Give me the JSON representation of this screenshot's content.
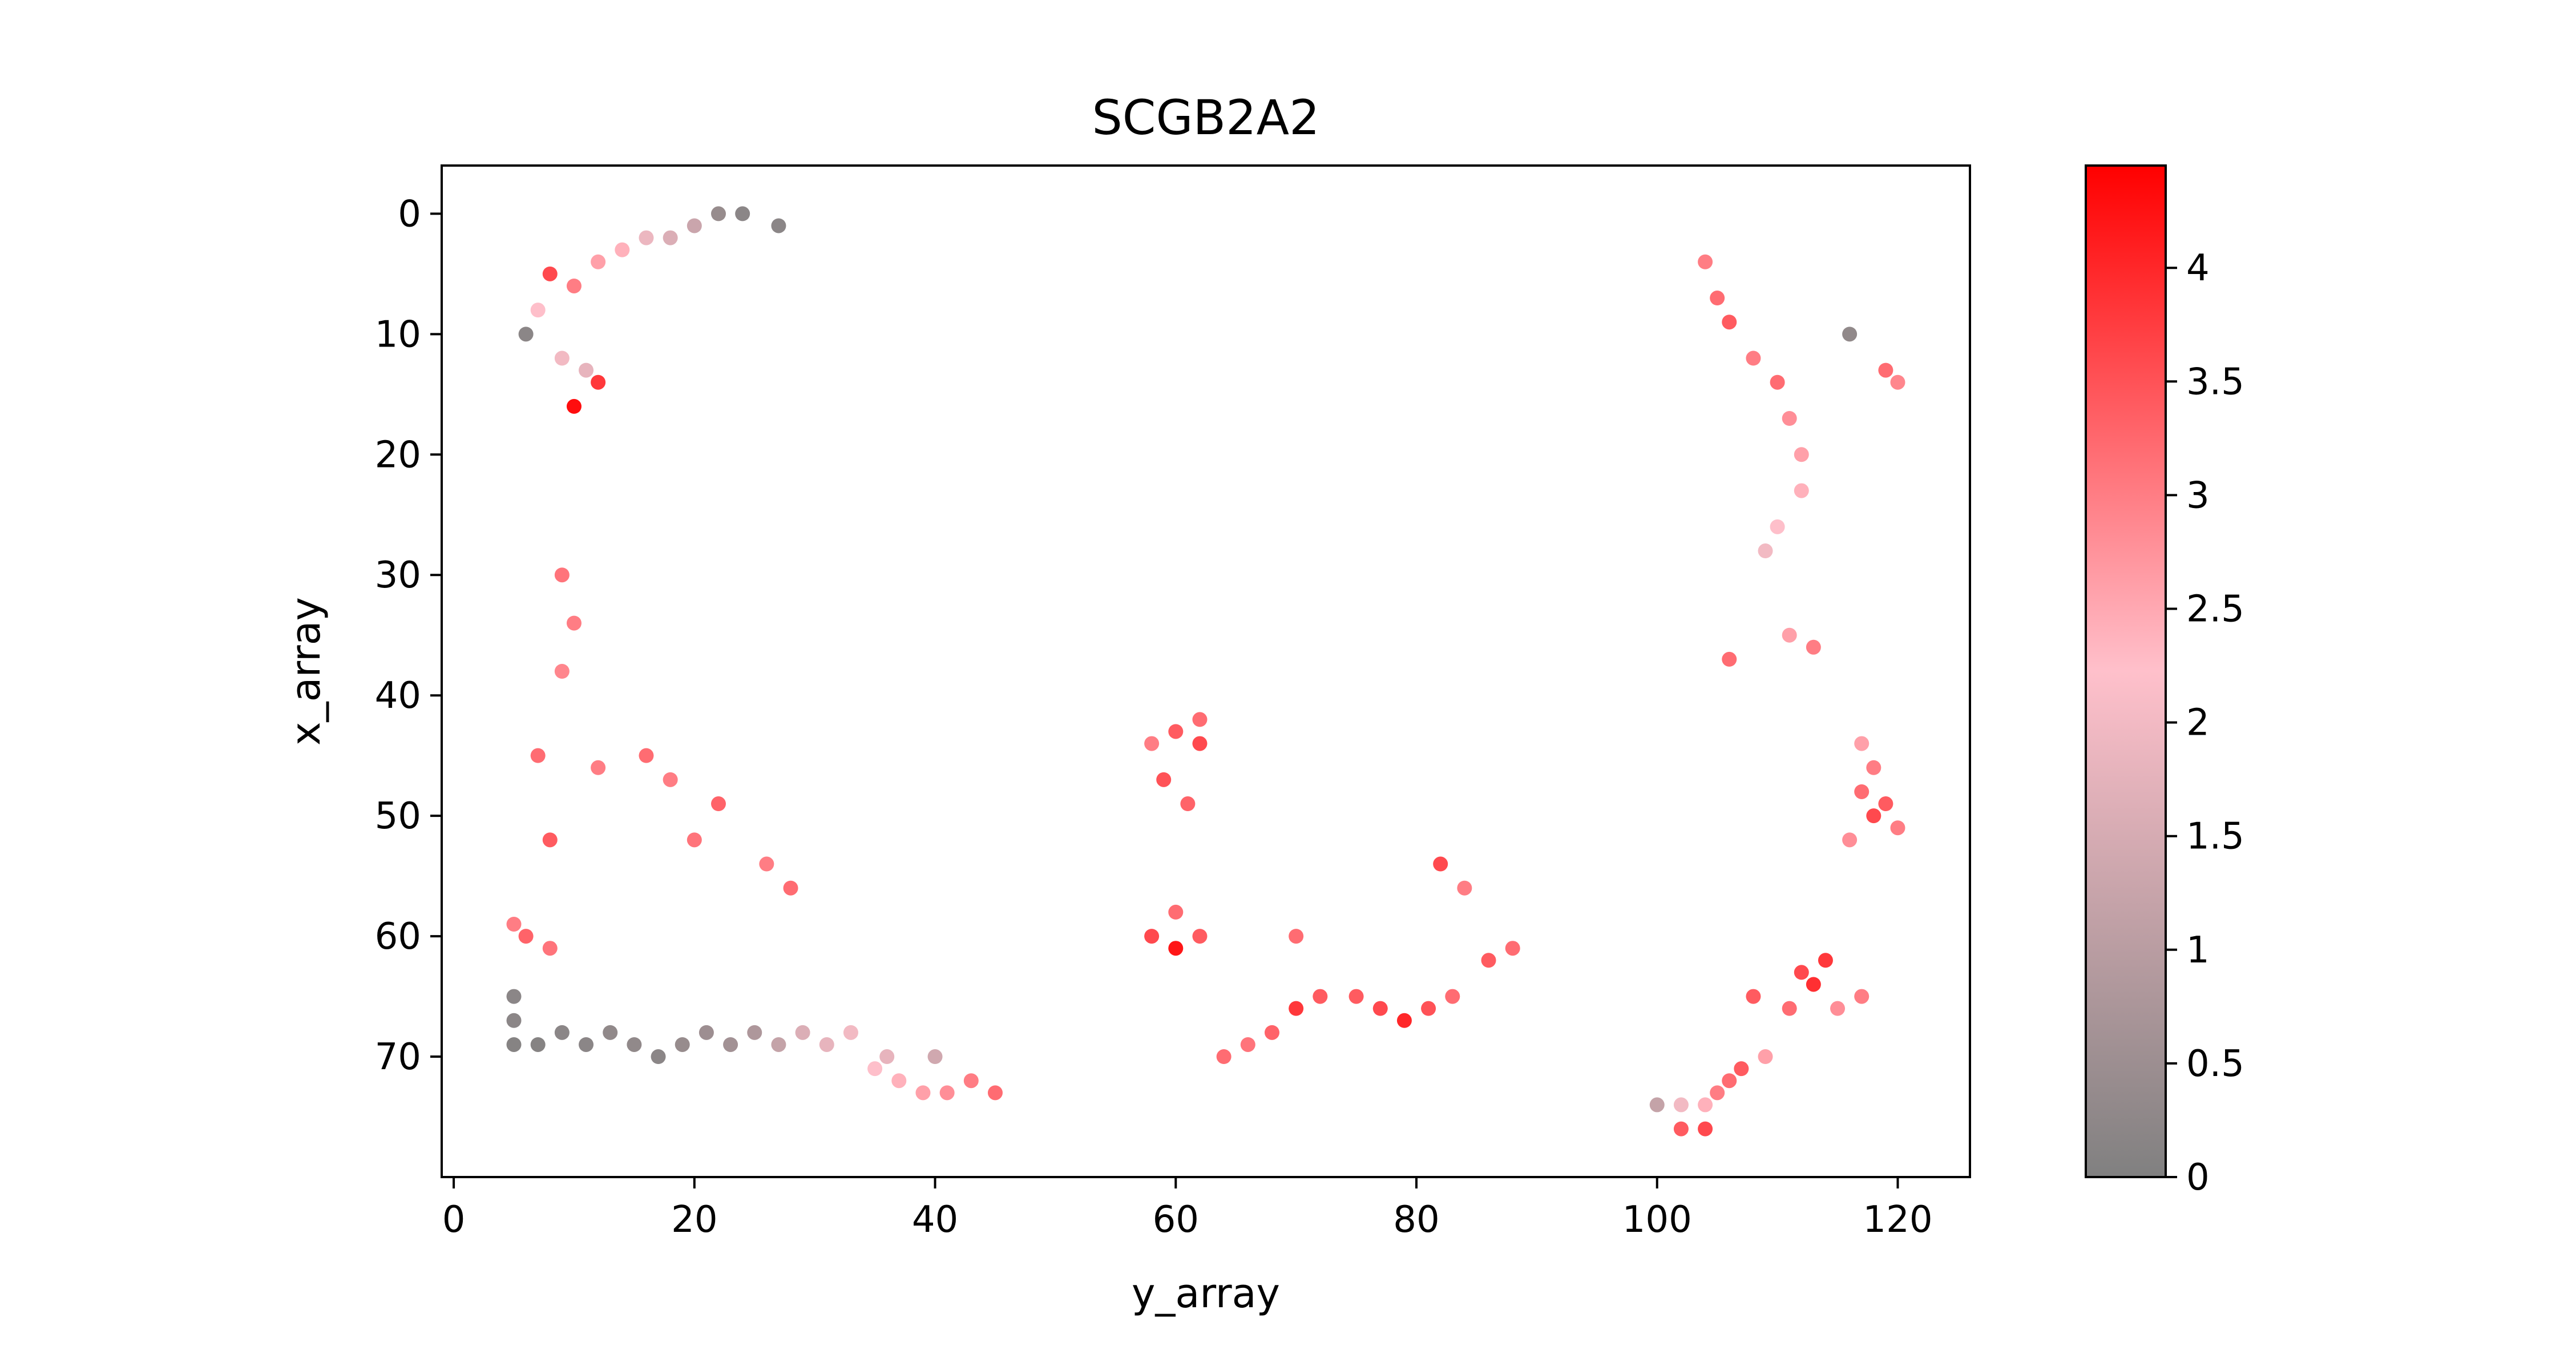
{
  "chart_data": {
    "type": "scatter",
    "title": "SCGB2A2",
    "xlabel": "y_array",
    "ylabel": "x_array",
    "xlim": [
      -1,
      126
    ],
    "ylim": [
      80,
      -4
    ],
    "y_inverted": true,
    "x_ticks": [
      0,
      20,
      40,
      60,
      80,
      100,
      120
    ],
    "y_ticks": [
      0,
      10,
      20,
      30,
      40,
      50,
      60,
      70
    ],
    "grid": false,
    "colorbar": {
      "range": [
        0,
        4.45
      ],
      "ticks": [
        0,
        0.5,
        1,
        1.5,
        2,
        2.5,
        3,
        3.5,
        4
      ],
      "tick_labels": [
        "0",
        "0.5",
        "1",
        "1.5",
        "2",
        "2.5",
        "3",
        "3.5",
        "4"
      ],
      "colormap": [
        "#808080",
        "#ffc0cb",
        "#ff0000"
      ],
      "position": "right"
    },
    "points": [
      [
        10,
        16,
        4.3
      ],
      [
        12,
        14,
        3.8
      ],
      [
        8,
        5,
        3.6
      ],
      [
        10,
        6,
        3.0
      ],
      [
        12,
        4,
        2.6
      ],
      [
        7,
        8,
        2.2
      ],
      [
        6,
        10,
        0.2
      ],
      [
        116,
        10,
        0.3
      ],
      [
        119,
        13,
        3.2
      ],
      [
        120,
        14,
        2.9
      ],
      [
        9,
        12,
        2.0
      ],
      [
        11,
        13,
        1.8
      ],
      [
        14,
        3,
        2.4
      ],
      [
        16,
        2,
        1.9
      ],
      [
        18,
        2,
        1.6
      ],
      [
        20,
        1,
        1.3
      ],
      [
        22,
        0,
        0.4
      ],
      [
        24,
        0,
        0.2
      ],
      [
        27,
        1,
        0.2
      ],
      [
        100,
        74,
        1.2
      ],
      [
        102,
        74,
        2.0
      ],
      [
        104,
        74,
        2.4
      ],
      [
        102,
        76,
        3.4
      ],
      [
        104,
        76,
        3.6
      ],
      [
        105,
        73,
        3.0
      ],
      [
        106,
        72,
        3.2
      ],
      [
        107,
        71,
        3.4
      ],
      [
        109,
        70,
        2.6
      ],
      [
        113,
        64,
        3.9
      ],
      [
        112,
        63,
        3.6
      ],
      [
        114,
        62,
        3.8
      ],
      [
        111,
        66,
        3.2
      ],
      [
        108,
        65,
        3.4
      ],
      [
        115,
        66,
        2.8
      ],
      [
        117,
        65,
        3.0
      ],
      [
        60,
        61,
        4.2
      ],
      [
        58,
        60,
        3.6
      ],
      [
        62,
        60,
        3.4
      ],
      [
        60,
        58,
        3.2
      ],
      [
        62,
        44,
        3.6
      ],
      [
        60,
        43,
        3.4
      ],
      [
        58,
        44,
        3.0
      ],
      [
        62,
        42,
        3.2
      ],
      [
        59,
        47,
        3.5
      ],
      [
        61,
        49,
        3.3
      ],
      [
        79,
        67,
        4.0
      ],
      [
        77,
        66,
        3.6
      ],
      [
        75,
        65,
        3.4
      ],
      [
        81,
        66,
        3.5
      ],
      [
        83,
        65,
        3.2
      ],
      [
        70,
        66,
        3.8
      ],
      [
        72,
        65,
        3.4
      ],
      [
        68,
        68,
        3.3
      ],
      [
        66,
        69,
        3.1
      ],
      [
        64,
        70,
        3.2
      ],
      [
        86,
        62,
        3.4
      ],
      [
        88,
        61,
        3.2
      ],
      [
        82,
        54,
        3.6
      ],
      [
        84,
        56,
        3.0
      ],
      [
        70,
        60,
        3.2
      ],
      [
        118,
        50,
        3.6
      ],
      [
        119,
        49,
        3.4
      ],
      [
        117,
        48,
        3.2
      ],
      [
        120,
        51,
        3.0
      ],
      [
        116,
        52,
        2.8
      ],
      [
        118,
        46,
        3.0
      ],
      [
        117,
        44,
        2.6
      ],
      [
        113,
        36,
        3.0
      ],
      [
        111,
        35,
        2.6
      ],
      [
        106,
        37,
        3.2
      ],
      [
        8,
        52,
        3.4
      ],
      [
        7,
        45,
        3.2
      ],
      [
        6,
        60,
        3.3
      ],
      [
        5,
        59,
        3.0
      ],
      [
        8,
        61,
        3.1
      ],
      [
        9,
        30,
        3.1
      ],
      [
        10,
        34,
        3.0
      ],
      [
        9,
        38,
        2.9
      ],
      [
        12,
        46,
        3.0
      ],
      [
        16,
        45,
        3.2
      ],
      [
        18,
        47,
        3.0
      ],
      [
        20,
        52,
        3.1
      ],
      [
        22,
        49,
        3.3
      ],
      [
        26,
        54,
        3.0
      ],
      [
        28,
        56,
        3.2
      ],
      [
        104,
        4,
        3.0
      ],
      [
        105,
        7,
        3.2
      ],
      [
        106,
        9,
        3.4
      ],
      [
        108,
        12,
        3.0
      ],
      [
        110,
        14,
        3.2
      ],
      [
        111,
        17,
        2.8
      ],
      [
        112,
        20,
        2.6
      ],
      [
        112,
        23,
        2.4
      ],
      [
        110,
        26,
        2.2
      ],
      [
        109,
        28,
        2.0
      ],
      [
        5,
        65,
        0.2
      ],
      [
        5,
        67,
        0.2
      ],
      [
        5,
        69,
        0.1
      ],
      [
        7,
        69,
        0.1
      ],
      [
        9,
        68,
        0.2
      ],
      [
        11,
        69,
        0.2
      ],
      [
        13,
        68,
        0.3
      ],
      [
        15,
        69,
        0.3
      ],
      [
        17,
        70,
        0.2
      ],
      [
        19,
        69,
        0.4
      ],
      [
        21,
        68,
        0.5
      ],
      [
        23,
        69,
        0.6
      ],
      [
        25,
        68,
        0.8
      ],
      [
        27,
        69,
        1.2
      ],
      [
        29,
        68,
        1.6
      ],
      [
        31,
        69,
        1.8
      ],
      [
        33,
        68,
        2.0
      ],
      [
        35,
        71,
        2.2
      ],
      [
        37,
        72,
        2.4
      ],
      [
        39,
        73,
        2.6
      ],
      [
        41,
        73,
        2.8
      ],
      [
        43,
        72,
        3.0
      ],
      [
        45,
        73,
        3.2
      ],
      [
        36,
        70,
        1.8
      ],
      [
        40,
        70,
        1.4
      ]
    ]
  }
}
